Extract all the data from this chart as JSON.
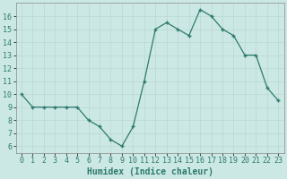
{
  "x": [
    0,
    1,
    2,
    3,
    4,
    5,
    6,
    7,
    8,
    9,
    10,
    11,
    12,
    13,
    14,
    15,
    16,
    17,
    18,
    19,
    20,
    21,
    22,
    23
  ],
  "y": [
    10,
    9,
    9,
    9,
    9,
    9,
    8,
    7.5,
    6.5,
    6,
    7.5,
    11,
    15,
    15.5,
    15,
    14.5,
    16.5,
    16,
    15,
    14.5,
    13,
    13,
    10.5,
    9.5
  ],
  "line_color": "#2d7a6e",
  "marker_color": "#2d7a6e",
  "bg_color": "#cce8e4",
  "grid_color": "#b0d4d0",
  "xlabel": "Humidex (Indice chaleur)",
  "xlim": [
    -0.5,
    23.5
  ],
  "ylim": [
    5.5,
    17
  ],
  "yticks": [
    6,
    7,
    8,
    9,
    10,
    11,
    12,
    13,
    14,
    15,
    16
  ],
  "xticks": [
    0,
    1,
    2,
    3,
    4,
    5,
    6,
    7,
    8,
    9,
    10,
    11,
    12,
    13,
    14,
    15,
    16,
    17,
    18,
    19,
    20,
    21,
    22,
    23
  ],
  "xlabel_fontsize": 7,
  "tick_fontsize": 6,
  "title_fontsize": 7
}
